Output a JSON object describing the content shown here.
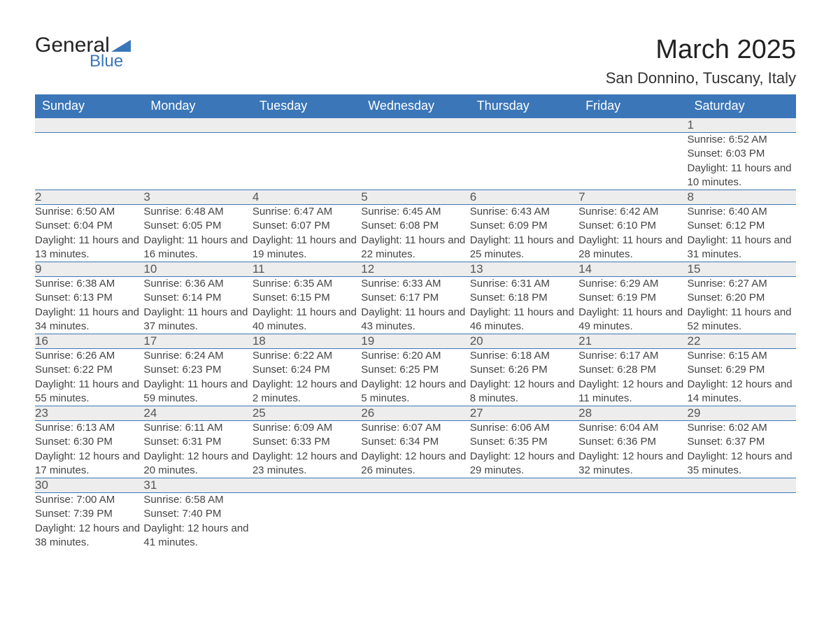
{
  "logo": {
    "text_general": "General",
    "text_blue": "Blue",
    "accent_color": "#3a76b8"
  },
  "title": "March 2025",
  "location": "San Donnino, Tuscany, Italy",
  "styling": {
    "header_bg": "#3a76b8",
    "header_fg": "#ffffff",
    "daynum_bg": "#ededed",
    "daynum_fg": "#555555",
    "body_fg": "#444444",
    "row_divider": "#3a76b8",
    "page_bg": "#ffffff",
    "month_title_fontsize": 38,
    "location_fontsize": 22,
    "header_fontsize": 18,
    "daynum_fontsize": 17,
    "detail_fontsize": 15
  },
  "weekdays": [
    "Sunday",
    "Monday",
    "Tuesday",
    "Wednesday",
    "Thursday",
    "Friday",
    "Saturday"
  ],
  "weeks": [
    [
      null,
      null,
      null,
      null,
      null,
      null,
      {
        "day": "1",
        "sunrise": "Sunrise: 6:52 AM",
        "sunset": "Sunset: 6:03 PM",
        "daylight": "Daylight: 11 hours and 10 minutes."
      }
    ],
    [
      {
        "day": "2",
        "sunrise": "Sunrise: 6:50 AM",
        "sunset": "Sunset: 6:04 PM",
        "daylight": "Daylight: 11 hours and 13 minutes."
      },
      {
        "day": "3",
        "sunrise": "Sunrise: 6:48 AM",
        "sunset": "Sunset: 6:05 PM",
        "daylight": "Daylight: 11 hours and 16 minutes."
      },
      {
        "day": "4",
        "sunrise": "Sunrise: 6:47 AM",
        "sunset": "Sunset: 6:07 PM",
        "daylight": "Daylight: 11 hours and 19 minutes."
      },
      {
        "day": "5",
        "sunrise": "Sunrise: 6:45 AM",
        "sunset": "Sunset: 6:08 PM",
        "daylight": "Daylight: 11 hours and 22 minutes."
      },
      {
        "day": "6",
        "sunrise": "Sunrise: 6:43 AM",
        "sunset": "Sunset: 6:09 PM",
        "daylight": "Daylight: 11 hours and 25 minutes."
      },
      {
        "day": "7",
        "sunrise": "Sunrise: 6:42 AM",
        "sunset": "Sunset: 6:10 PM",
        "daylight": "Daylight: 11 hours and 28 minutes."
      },
      {
        "day": "8",
        "sunrise": "Sunrise: 6:40 AM",
        "sunset": "Sunset: 6:12 PM",
        "daylight": "Daylight: 11 hours and 31 minutes."
      }
    ],
    [
      {
        "day": "9",
        "sunrise": "Sunrise: 6:38 AM",
        "sunset": "Sunset: 6:13 PM",
        "daylight": "Daylight: 11 hours and 34 minutes."
      },
      {
        "day": "10",
        "sunrise": "Sunrise: 6:36 AM",
        "sunset": "Sunset: 6:14 PM",
        "daylight": "Daylight: 11 hours and 37 minutes."
      },
      {
        "day": "11",
        "sunrise": "Sunrise: 6:35 AM",
        "sunset": "Sunset: 6:15 PM",
        "daylight": "Daylight: 11 hours and 40 minutes."
      },
      {
        "day": "12",
        "sunrise": "Sunrise: 6:33 AM",
        "sunset": "Sunset: 6:17 PM",
        "daylight": "Daylight: 11 hours and 43 minutes."
      },
      {
        "day": "13",
        "sunrise": "Sunrise: 6:31 AM",
        "sunset": "Sunset: 6:18 PM",
        "daylight": "Daylight: 11 hours and 46 minutes."
      },
      {
        "day": "14",
        "sunrise": "Sunrise: 6:29 AM",
        "sunset": "Sunset: 6:19 PM",
        "daylight": "Daylight: 11 hours and 49 minutes."
      },
      {
        "day": "15",
        "sunrise": "Sunrise: 6:27 AM",
        "sunset": "Sunset: 6:20 PM",
        "daylight": "Daylight: 11 hours and 52 minutes."
      }
    ],
    [
      {
        "day": "16",
        "sunrise": "Sunrise: 6:26 AM",
        "sunset": "Sunset: 6:22 PM",
        "daylight": "Daylight: 11 hours and 55 minutes."
      },
      {
        "day": "17",
        "sunrise": "Sunrise: 6:24 AM",
        "sunset": "Sunset: 6:23 PM",
        "daylight": "Daylight: 11 hours and 59 minutes."
      },
      {
        "day": "18",
        "sunrise": "Sunrise: 6:22 AM",
        "sunset": "Sunset: 6:24 PM",
        "daylight": "Daylight: 12 hours and 2 minutes."
      },
      {
        "day": "19",
        "sunrise": "Sunrise: 6:20 AM",
        "sunset": "Sunset: 6:25 PM",
        "daylight": "Daylight: 12 hours and 5 minutes."
      },
      {
        "day": "20",
        "sunrise": "Sunrise: 6:18 AM",
        "sunset": "Sunset: 6:26 PM",
        "daylight": "Daylight: 12 hours and 8 minutes."
      },
      {
        "day": "21",
        "sunrise": "Sunrise: 6:17 AM",
        "sunset": "Sunset: 6:28 PM",
        "daylight": "Daylight: 12 hours and 11 minutes."
      },
      {
        "day": "22",
        "sunrise": "Sunrise: 6:15 AM",
        "sunset": "Sunset: 6:29 PM",
        "daylight": "Daylight: 12 hours and 14 minutes."
      }
    ],
    [
      {
        "day": "23",
        "sunrise": "Sunrise: 6:13 AM",
        "sunset": "Sunset: 6:30 PM",
        "daylight": "Daylight: 12 hours and 17 minutes."
      },
      {
        "day": "24",
        "sunrise": "Sunrise: 6:11 AM",
        "sunset": "Sunset: 6:31 PM",
        "daylight": "Daylight: 12 hours and 20 minutes."
      },
      {
        "day": "25",
        "sunrise": "Sunrise: 6:09 AM",
        "sunset": "Sunset: 6:33 PM",
        "daylight": "Daylight: 12 hours and 23 minutes."
      },
      {
        "day": "26",
        "sunrise": "Sunrise: 6:07 AM",
        "sunset": "Sunset: 6:34 PM",
        "daylight": "Daylight: 12 hours and 26 minutes."
      },
      {
        "day": "27",
        "sunrise": "Sunrise: 6:06 AM",
        "sunset": "Sunset: 6:35 PM",
        "daylight": "Daylight: 12 hours and 29 minutes."
      },
      {
        "day": "28",
        "sunrise": "Sunrise: 6:04 AM",
        "sunset": "Sunset: 6:36 PM",
        "daylight": "Daylight: 12 hours and 32 minutes."
      },
      {
        "day": "29",
        "sunrise": "Sunrise: 6:02 AM",
        "sunset": "Sunset: 6:37 PM",
        "daylight": "Daylight: 12 hours and 35 minutes."
      }
    ],
    [
      {
        "day": "30",
        "sunrise": "Sunrise: 7:00 AM",
        "sunset": "Sunset: 7:39 PM",
        "daylight": "Daylight: 12 hours and 38 minutes."
      },
      {
        "day": "31",
        "sunrise": "Sunrise: 6:58 AM",
        "sunset": "Sunset: 7:40 PM",
        "daylight": "Daylight: 12 hours and 41 minutes."
      },
      null,
      null,
      null,
      null,
      null
    ]
  ]
}
